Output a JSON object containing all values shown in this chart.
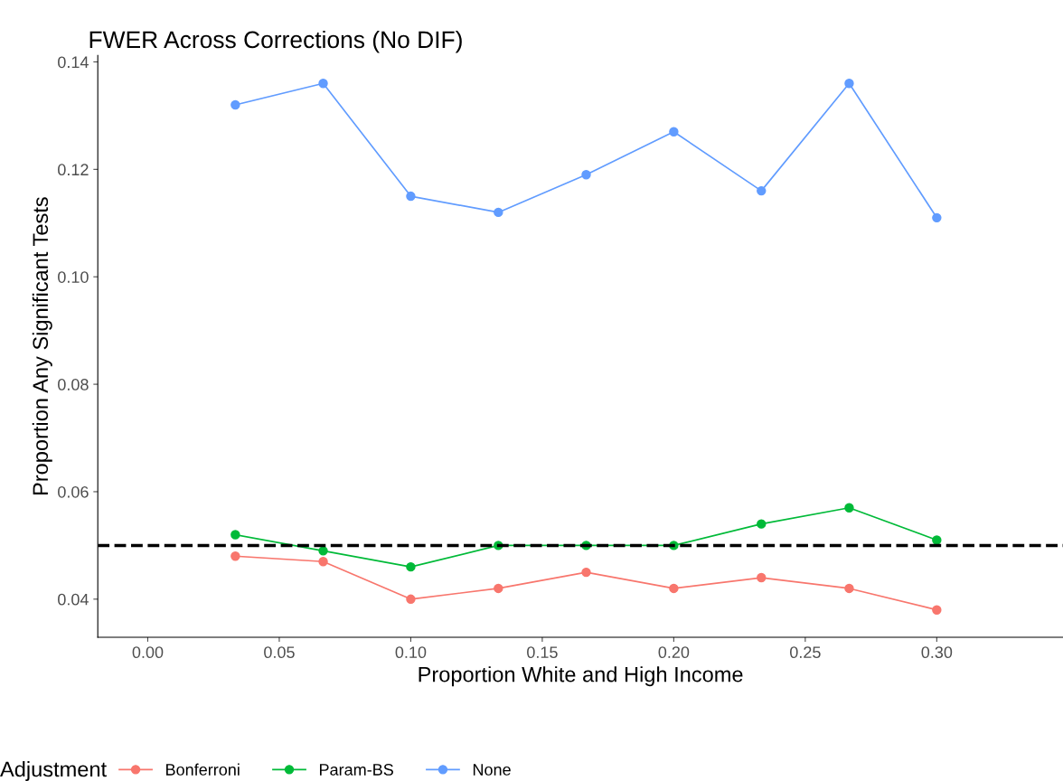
{
  "chart_data": {
    "type": "line",
    "title": "FWER Across Corrections (No DIF)",
    "xlabel": "Proportion White and High Income",
    "ylabel": "Proportion Any Significant Tests",
    "legend_title": "Adjustment",
    "x": [
      0.0333,
      0.0667,
      0.1,
      0.1333,
      0.1667,
      0.2,
      0.2333,
      0.2667,
      0.3
    ],
    "series": [
      {
        "name": "Bonferroni",
        "color": "#f8766d",
        "values": [
          0.048,
          0.047,
          0.04,
          0.042,
          0.045,
          0.042,
          0.044,
          0.042,
          0.038
        ]
      },
      {
        "name": "Param-BS",
        "color": "#00ba38",
        "values": [
          0.052,
          0.049,
          0.046,
          0.05,
          0.05,
          0.05,
          0.054,
          0.057,
          0.051
        ]
      },
      {
        "name": "None",
        "color": "#619cff",
        "values": [
          0.132,
          0.136,
          0.115,
          0.112,
          0.119,
          0.127,
          0.116,
          0.136,
          0.111
        ]
      }
    ],
    "xlim": [
      -0.019,
      0.348
    ],
    "xticks": [
      {
        "value": 0,
        "label": "0.00"
      },
      0.05,
      {
        "value": 0.1,
        "label": "0.10"
      },
      0.15,
      {
        "value": 0.2,
        "label": "0.20"
      },
      0.25,
      {
        "value": 0.3,
        "label": "0.30"
      }
    ],
    "ylim": [
      0.0329,
      0.1412
    ],
    "yticks": [
      0.04,
      0.06,
      0.08,
      {
        "value": 0.1,
        "label": "0.10"
      },
      0.12,
      0.14
    ],
    "ref_lines": [
      {
        "axis": "y",
        "value": 0.05,
        "color": "#000000",
        "line_style": "dashed"
      }
    ],
    "marker": "circle",
    "line_style": "solid",
    "grid": false,
    "legend": "bottom"
  }
}
